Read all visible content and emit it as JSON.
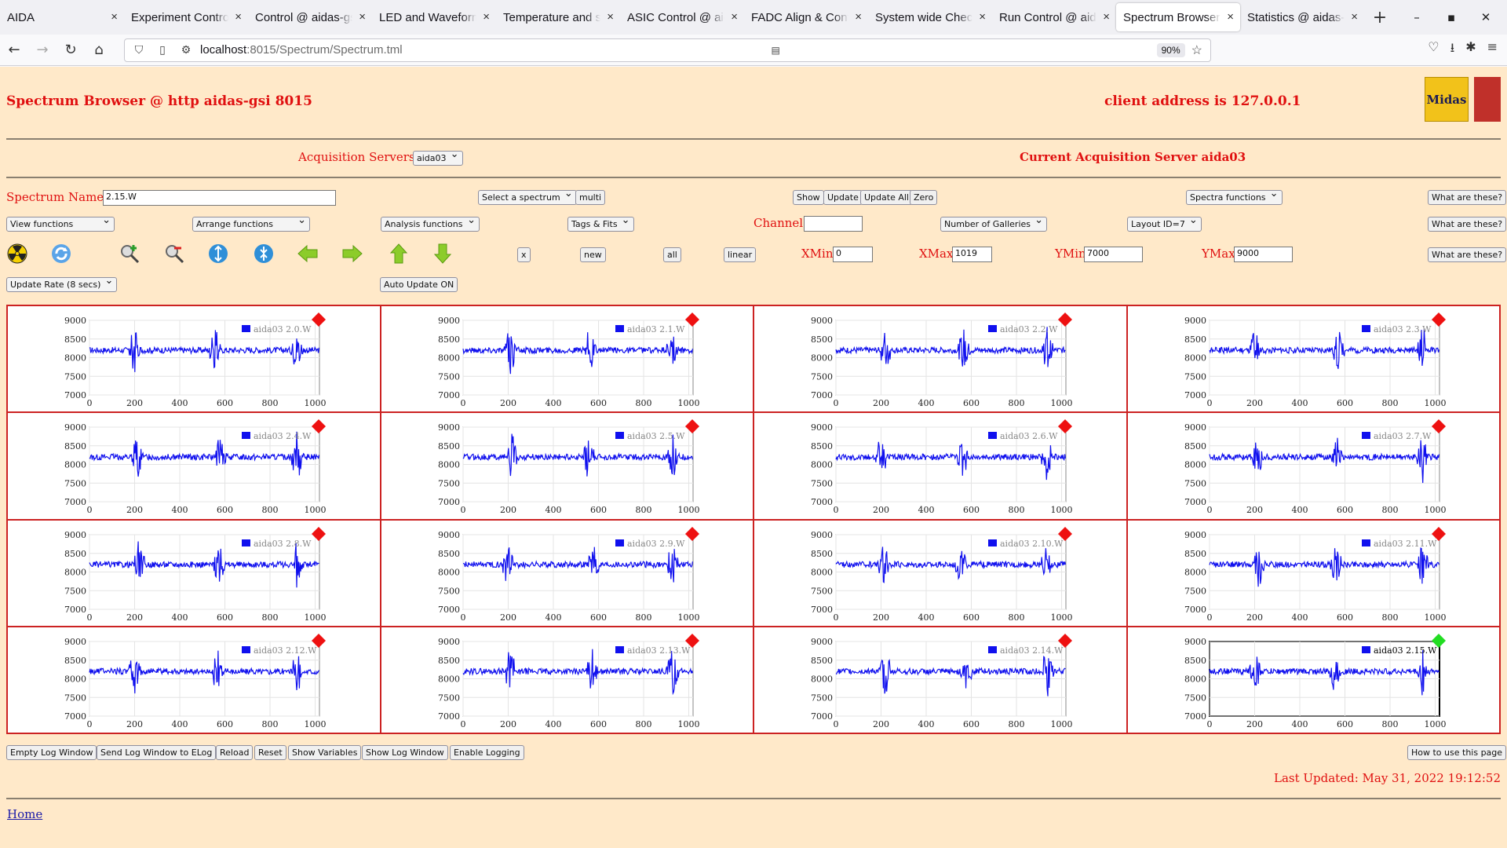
{
  "browser": {
    "tabs": [
      {
        "label": "AIDA",
        "active": false
      },
      {
        "label": "Experiment Control",
        "active": false
      },
      {
        "label": "Control @ aidas-gsi",
        "active": false
      },
      {
        "label": "LED and Waveform",
        "active": false
      },
      {
        "label": "Temperature and s",
        "active": false
      },
      {
        "label": "ASIC Control @ aid",
        "active": false
      },
      {
        "label": "FADC Align & Cont",
        "active": false
      },
      {
        "label": "System wide Check",
        "active": false
      },
      {
        "label": "Run Control @ aida",
        "active": false
      },
      {
        "label": "Spectrum Browser",
        "active": true
      },
      {
        "label": "Statistics @ aidas-g",
        "active": false
      }
    ],
    "close_glyph": "×",
    "new_tab": "+",
    "url_host": "localhost",
    "url_path": ":8015/Spectrum/Spectrum.tml",
    "zoom": "90%"
  },
  "header": {
    "title": "Spectrum Browser @ http aidas-gsi 8015",
    "client": "client address is 127.0.0.1",
    "logo_text": "Midas"
  },
  "acq": {
    "label": "Acquisition Servers",
    "server": "aida03",
    "current": "Current Acquisition Server aida03"
  },
  "controls": {
    "spectrum_name_label": "Spectrum Name:",
    "spectrum_name_value": "2.15.W",
    "select_spectrum": "Select a spectrum",
    "multi": "multi",
    "show": "Show",
    "update": "Update",
    "update_all": "Update All",
    "zero": "Zero",
    "spectra_functions": "Spectra functions",
    "what": "What are these?",
    "view_functions": "View functions",
    "arrange_functions": "Arrange functions",
    "analysis_functions": "Analysis functions",
    "tags_fits": "Tags & Fits",
    "channel_label": "Channel:",
    "channel_value": "",
    "number_galleries": "Number of Galleries",
    "layout": "Layout ID=7",
    "x": "x",
    "new": "new",
    "all": "all",
    "linear": "linear",
    "xmin_label": "XMin",
    "xmin": "0",
    "xmax_label": "XMax",
    "xmax": "1019",
    "ymin_label": "YMin",
    "ymin": "7000",
    "ymax_label": "YMax",
    "ymax": "9000",
    "update_rate": "Update Rate (8 secs)",
    "auto_update": "Auto Update ON"
  },
  "spectra": {
    "x_ticks": [
      "0",
      "200",
      "400",
      "600",
      "800",
      "1000"
    ],
    "y_ticks": [
      "9000",
      "8500",
      "8000",
      "7500",
      "7000"
    ],
    "xlim": [
      0,
      1019
    ],
    "ylim": [
      7000,
      9000
    ],
    "baseline": 8200,
    "line_color": "#1010ee",
    "marker_red": "#ee1111",
    "marker_green": "#22dd22",
    "items": [
      {
        "name": "aida03 2.0.W",
        "selected": false
      },
      {
        "name": "aida03 2.1.W",
        "selected": false
      },
      {
        "name": "aida03 2.2.W",
        "selected": false
      },
      {
        "name": "aida03 2.3.W",
        "selected": false
      },
      {
        "name": "aida03 2.4.W",
        "selected": false
      },
      {
        "name": "aida03 2.5.W",
        "selected": false
      },
      {
        "name": "aida03 2.6.W",
        "selected": false
      },
      {
        "name": "aida03 2.7.W",
        "selected": false
      },
      {
        "name": "aida03 2.8.W",
        "selected": false
      },
      {
        "name": "aida03 2.9.W",
        "selected": false
      },
      {
        "name": "aida03 2.10.W",
        "selected": false
      },
      {
        "name": "aida03 2.11.W",
        "selected": false
      },
      {
        "name": "aida03 2.12.W",
        "selected": false
      },
      {
        "name": "aida03 2.13.W",
        "selected": false
      },
      {
        "name": "aida03 2.14.W",
        "selected": false
      },
      {
        "name": "aida03 2.15.W",
        "selected": true
      }
    ]
  },
  "bottom": {
    "buttons": [
      "Empty Log Window",
      "Send Log Window to ELog",
      "Reload",
      "Reset",
      "Show Variables",
      "Show Log Window",
      "Enable Logging"
    ],
    "how_to": "How to use this page",
    "last_updated": "Last Updated: May 31, 2022 19:12:52",
    "home": "Home"
  }
}
